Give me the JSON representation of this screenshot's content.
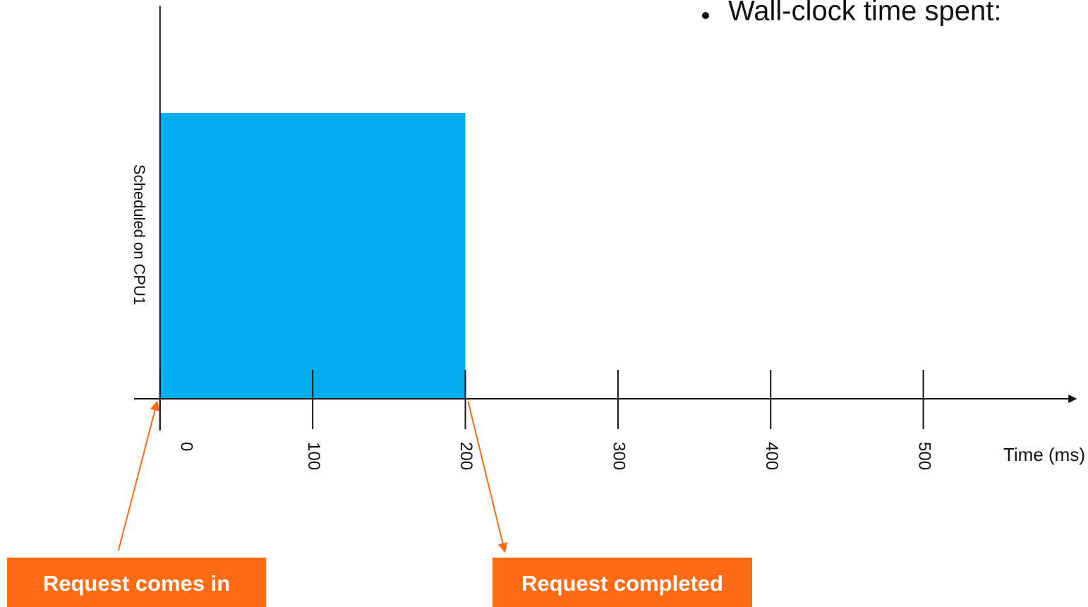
{
  "chart_data": {
    "type": "bar",
    "bullet": "Wall-clock time spent:",
    "categories": [
      "Scheduled on CPU1"
    ],
    "values": [
      200
    ],
    "color": "#00aeef",
    "xlabel": "Time (ms)",
    "xlim": [
      -17,
      600
    ],
    "xticks": [
      0,
      100,
      200,
      300,
      400,
      500
    ],
    "annotations": [
      {
        "text": "Request comes in",
        "x": 0
      },
      {
        "text": "Request completed",
        "x": 200
      }
    ],
    "annotation_color": "#ff6a13"
  }
}
